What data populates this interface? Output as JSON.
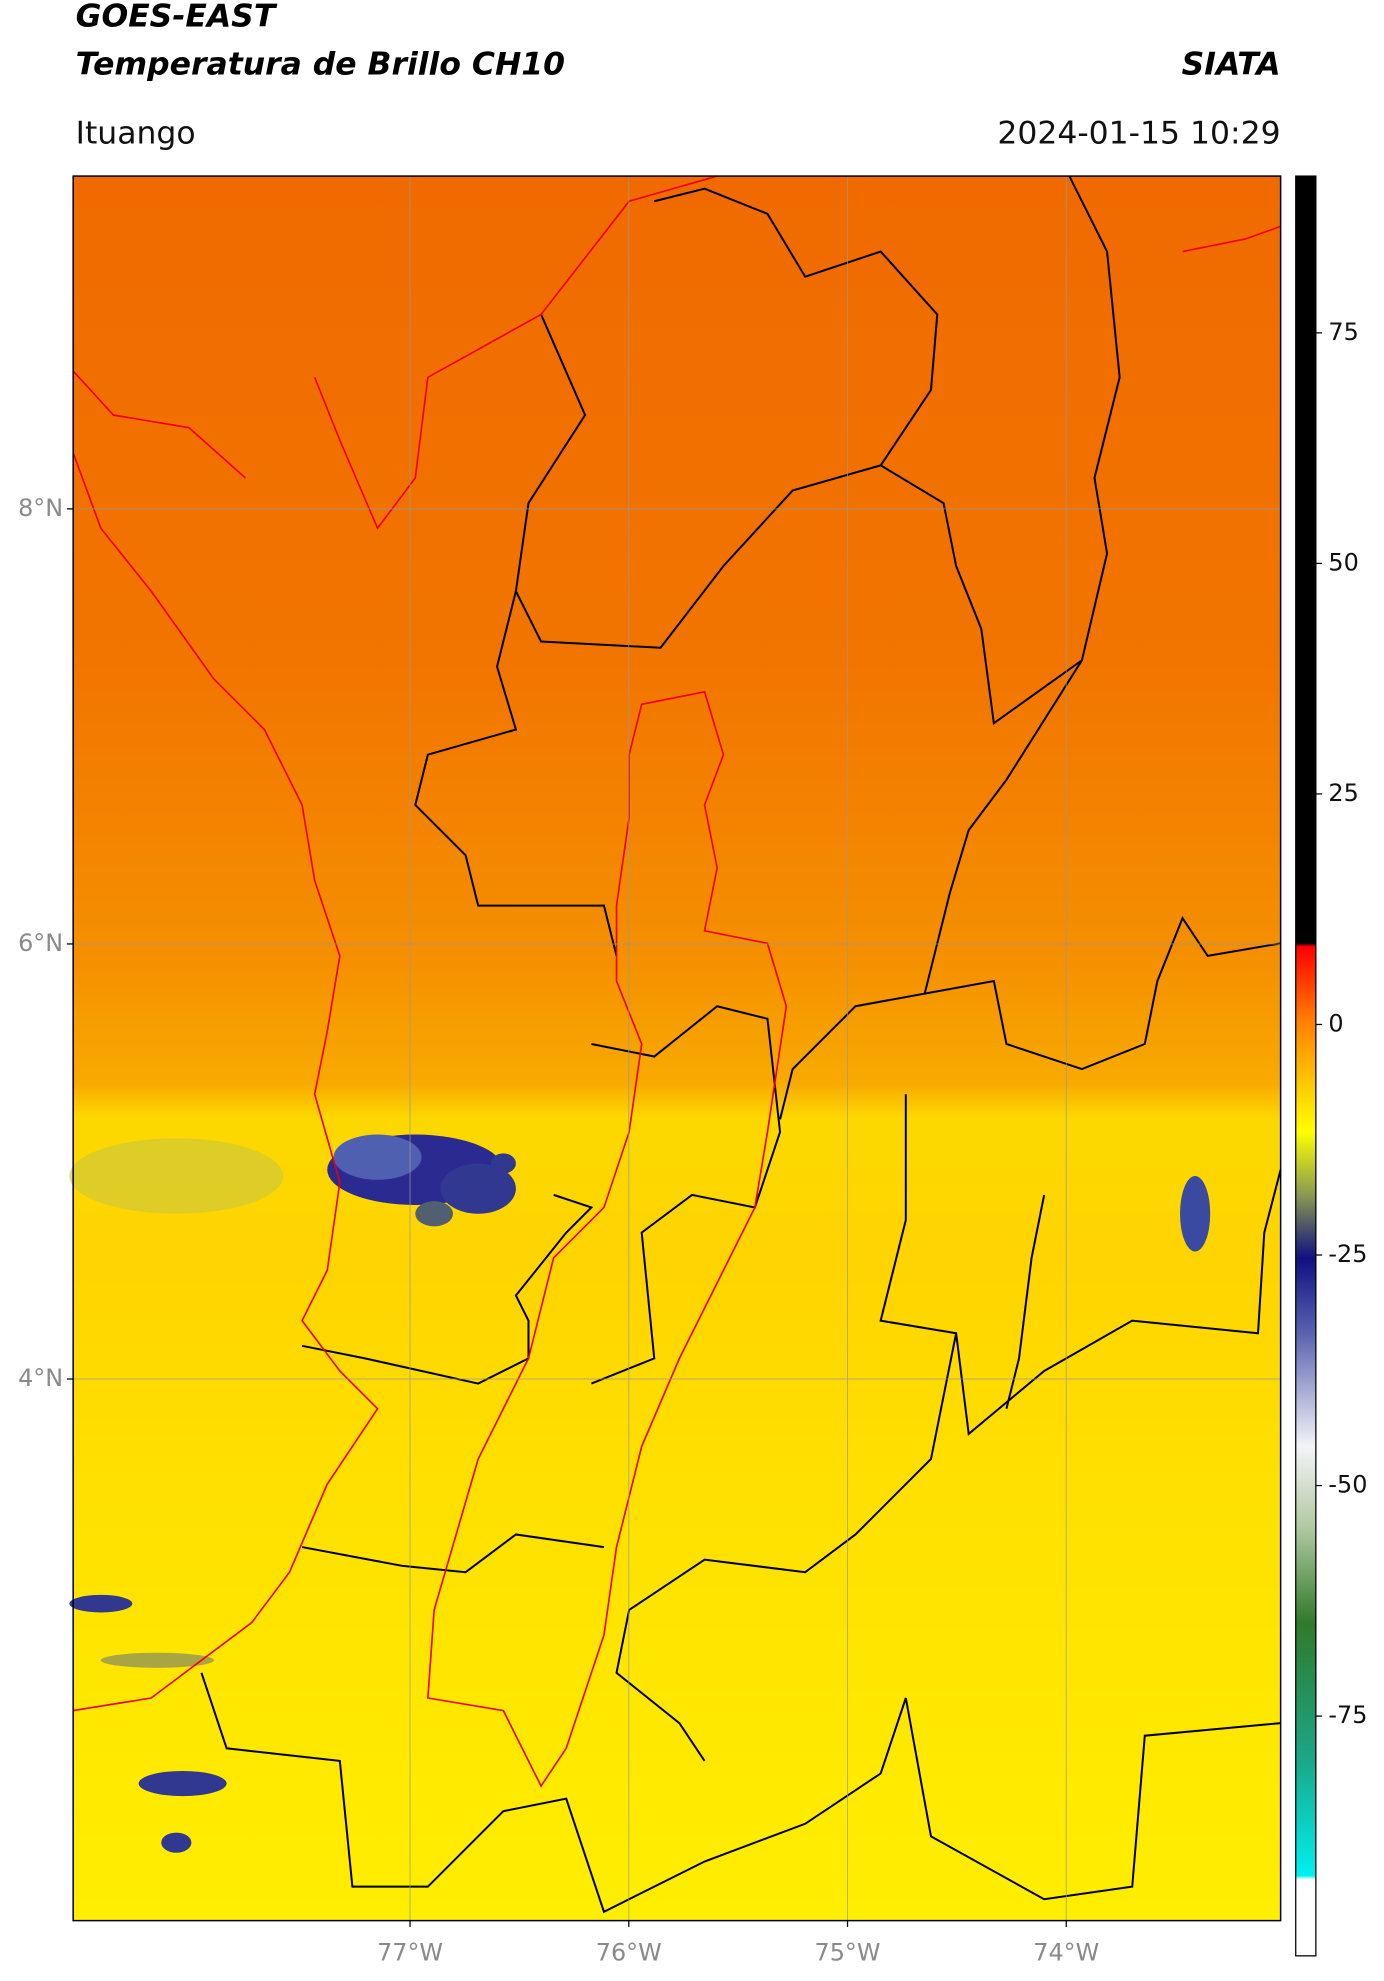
{
  "header": {
    "title": "GOES-EAST",
    "subtitle": "Temperatura de Brillo CH10",
    "source": "SIATA",
    "location": "Ituango",
    "datetime": "2024-01-15 10:29"
  },
  "map": {
    "lat_range": [
      1.51,
      9.53
    ],
    "lon_range": [
      -78.54,
      -73.02
    ],
    "lat_ticks": [
      {
        "value": 8,
        "label": "8°N"
      },
      {
        "value": 6,
        "label": "6°N"
      },
      {
        "value": 4,
        "label": "4°N"
      }
    ],
    "lon_ticks": [
      {
        "value": -77,
        "label": "77°W"
      },
      {
        "value": -76,
        "label": "76°W"
      },
      {
        "value": -75,
        "label": "75°W"
      },
      {
        "value": -74,
        "label": "74°W"
      }
    ],
    "grid": true
  },
  "colorbar": {
    "range": [
      -101,
      92
    ],
    "ticks": [
      75,
      50,
      25,
      0,
      -25,
      -50,
      -75
    ]
  }
}
